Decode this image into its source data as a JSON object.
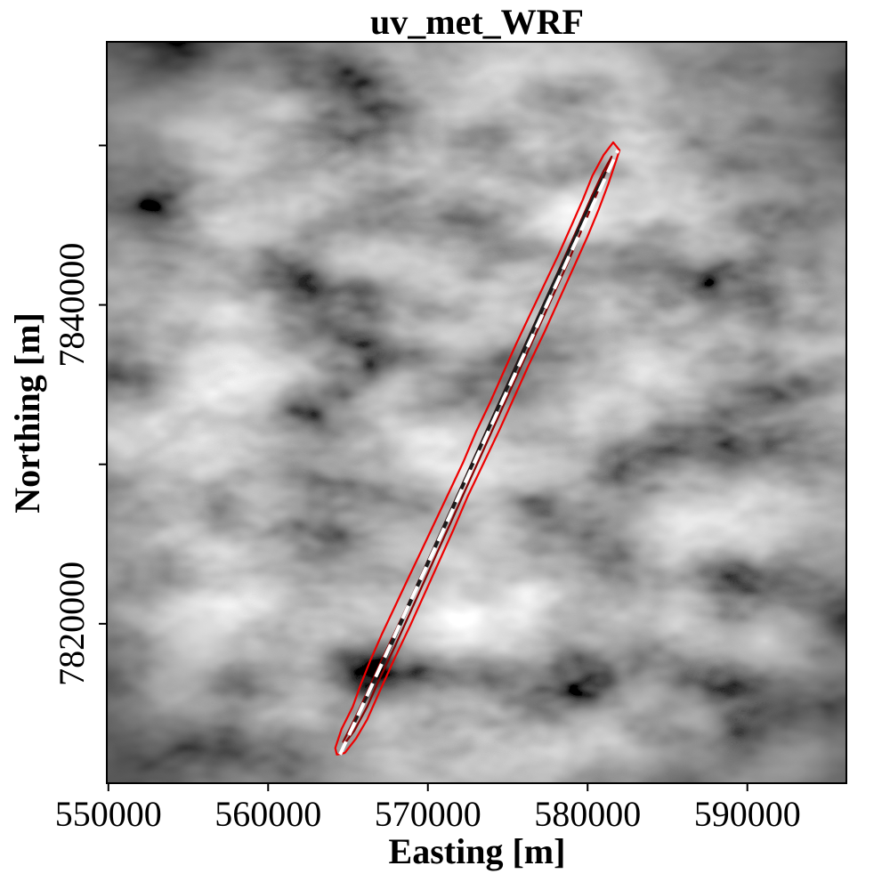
{
  "chart_data": {
    "type": "heatmap",
    "title": "uv_met_WRF",
    "xlabel": "Easting [m]",
    "ylabel": "Northing [m]",
    "xlim": [
      549900,
      596200
    ],
    "ylim": [
      7810000,
      7856500
    ],
    "x_ticks": [
      {
        "value": 550000,
        "label": "550000"
      },
      {
        "value": 560000,
        "label": "560000"
      },
      {
        "value": 570000,
        "label": "570000"
      },
      {
        "value": 580000,
        "label": "580000"
      },
      {
        "value": 590000,
        "label": "590000"
      }
    ],
    "y_ticks": [
      {
        "value": 7820000,
        "label": "7820000"
      },
      {
        "value": 7830000,
        "label": ""
      },
      {
        "value": 7840000,
        "label": "7840000"
      },
      {
        "value": 7850000,
        "label": ""
      }
    ],
    "background": "grayscale terrain field",
    "grid": false,
    "legend": "none",
    "track": {
      "name": "",
      "color": "#ffffff",
      "style": "dashed",
      "x": [
        564500,
        581900
      ],
      "y": [
        7811800,
        7849700
      ]
    },
    "contours": [
      {
        "color": "#ee0000",
        "x": [
          564200,
          564600,
          565300,
          565800,
          566400,
          567100,
          567900,
          568700,
          569600,
          570500,
          571300,
          572200,
          573000,
          573900,
          574700,
          575500,
          576400,
          577300,
          578200,
          579000,
          579700,
          580300,
          581000,
          581600,
          582000,
          581700,
          581300,
          580700,
          580000,
          579100,
          578200,
          577300,
          576300,
          575400,
          574500,
          573500,
          572500,
          571600,
          570700,
          569800,
          568900,
          567900,
          567000,
          566200,
          565500,
          564800,
          564300
        ],
        "y": [
          7812200,
          7813400,
          7814800,
          7816200,
          7817700,
          7819300,
          7821000,
          7822700,
          7824600,
          7826500,
          7828200,
          7830100,
          7832000,
          7833900,
          7835700,
          7837500,
          7839400,
          7841300,
          7843200,
          7845000,
          7846600,
          7848100,
          7849400,
          7850200,
          7849700,
          7848800,
          7847600,
          7846000,
          7844300,
          7842300,
          7840300,
          7838300,
          7836200,
          7834200,
          7832200,
          7830100,
          7828000,
          7825900,
          7823900,
          7821900,
          7819900,
          7817800,
          7815800,
          7814000,
          7812800,
          7811900,
          7811800
        ]
      },
      {
        "color": "#8b0000",
        "x": [
          564700,
          565400,
          566200,
          567000,
          567900,
          568800,
          569700,
          570600,
          571500,
          572400,
          573300,
          574200,
          575100,
          576000,
          576900,
          577800,
          578700,
          579500,
          580300,
          581000,
          581500,
          581000,
          580300,
          579500,
          578700,
          577800,
          576900,
          576000,
          575100,
          574200,
          573300,
          572400,
          571500,
          570600,
          569700,
          568800,
          567900,
          567000,
          566200,
          565400,
          564800
        ],
        "y": [
          7812600,
          7814000,
          7815700,
          7817500,
          7819400,
          7821300,
          7823300,
          7825300,
          7827300,
          7829300,
          7831300,
          7833300,
          7835300,
          7837300,
          7839300,
          7841300,
          7843300,
          7845100,
          7846900,
          7848400,
          7849300,
          7848000,
          7846300,
          7844400,
          7842500,
          7840500,
          7838500,
          7836500,
          7834500,
          7832500,
          7830500,
          7828500,
          7826500,
          7824500,
          7822500,
          7820500,
          7818500,
          7816600,
          7814800,
          7813300,
          7812500
        ]
      },
      {
        "color": "#1a1a1a",
        "x": [
          565200,
          566000,
          566900,
          567800,
          568700,
          569600,
          570500,
          571400,
          572300,
          573200,
          574100,
          575000,
          575900,
          576800,
          577700,
          578600,
          579500,
          580300,
          581100,
          580400,
          579600,
          578800,
          577900,
          577000,
          576100,
          575200,
          574300,
          573400,
          572500,
          571600,
          570700,
          569800,
          568900,
          568000,
          567100,
          566200,
          565400
        ],
        "y": [
          7813300,
          7815000,
          7816900,
          7818800,
          7820800,
          7822800,
          7824800,
          7826800,
          7828800,
          7830800,
          7832800,
          7834800,
          7836800,
          7838800,
          7840800,
          7842800,
          7844800,
          7846600,
          7848300,
          7846900,
          7845200,
          7843400,
          7841500,
          7839500,
          7837500,
          7835500,
          7833500,
          7831500,
          7829500,
          7827500,
          7825500,
          7823500,
          7821500,
          7819500,
          7817500,
          7815500,
          7813800
        ]
      }
    ]
  }
}
